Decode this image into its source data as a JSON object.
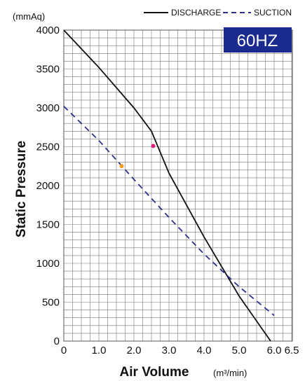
{
  "chart_data": {
    "type": "line",
    "title": "",
    "badge": "60HZ",
    "xlabel": "Air Volume",
    "xunit": "(m³/min)",
    "ylabel": "Static Pressure",
    "yunit": "(mmAq)",
    "xlim": [
      0,
      6.5
    ],
    "ylim": [
      0,
      4000
    ],
    "x_ticks": [
      "0",
      "1.0",
      "2.0",
      "3.0",
      "4.0",
      "5.0",
      "6.0",
      "6.5"
    ],
    "x_tick_values": [
      0,
      1,
      2,
      3,
      4,
      5,
      6,
      6.5
    ],
    "y_ticks": [
      "0",
      "500",
      "1000",
      "1500",
      "2000",
      "2500",
      "3000",
      "3500",
      "4000"
    ],
    "y_tick_values": [
      0,
      500,
      1000,
      1500,
      2000,
      2500,
      3000,
      3500,
      4000
    ],
    "grid": true,
    "legend_position": "top-right",
    "series": [
      {
        "name": "DISCHARGE",
        "style": "solid",
        "color": "#111111",
        "points": [
          [
            0,
            4000
          ],
          [
            1.0,
            3520
          ],
          [
            2.0,
            3000
          ],
          [
            2.5,
            2700
          ],
          [
            3.0,
            2160
          ],
          [
            4.0,
            1340
          ],
          [
            5.0,
            580
          ],
          [
            5.9,
            0
          ]
        ]
      },
      {
        "name": "SUCTION",
        "style": "dashed",
        "color": "#2e2e8e",
        "points": [
          [
            0,
            3020
          ],
          [
            1.0,
            2580
          ],
          [
            2.0,
            2080
          ],
          [
            3.0,
            1590
          ],
          [
            4.0,
            1120
          ],
          [
            5.0,
            700
          ],
          [
            6.0,
            330
          ]
        ]
      }
    ],
    "markers": [
      {
        "x": 1.65,
        "y": 2250,
        "color": "#f0a020"
      },
      {
        "x": 2.55,
        "y": 2510,
        "color": "#e0207a"
      }
    ]
  }
}
